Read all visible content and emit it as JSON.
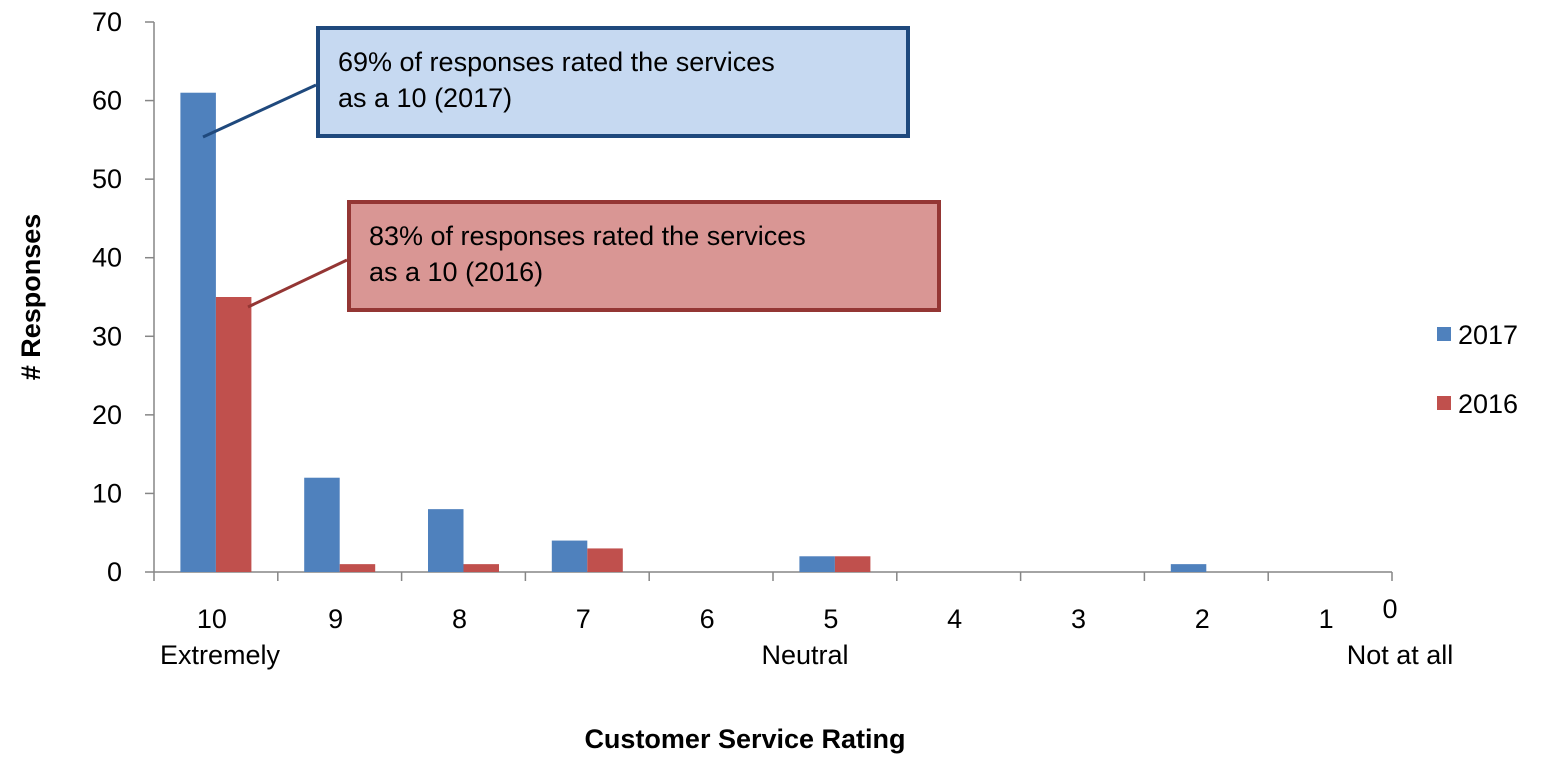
{
  "chart_data": {
    "type": "bar",
    "categories": [
      "10",
      "9",
      "8",
      "7",
      "6",
      "5",
      "4",
      "3",
      "2",
      "1"
    ],
    "series": [
      {
        "name": "2017",
        "color": "#4f81bd",
        "values": [
          61,
          12,
          8,
          4,
          0,
          2,
          0,
          0,
          1,
          0
        ]
      },
      {
        "name": "2016",
        "color": "#c0504d",
        "values": [
          35,
          1,
          1,
          3,
          0,
          2,
          0,
          0,
          0,
          0
        ]
      }
    ],
    "x_end_label": "0",
    "x_sublabels": [
      "Extremely",
      "Neutral",
      "Not at all"
    ],
    "xlabel": "Customer Service Rating",
    "ylabel": "# Responses",
    "ylim": [
      0,
      70
    ],
    "yticks": [
      0,
      10,
      20,
      30,
      40,
      50,
      60,
      70
    ],
    "legend": "right",
    "annotations": [
      {
        "text": "69% of responses rated the services as a 10 (2017)",
        "fill": "#c6d9f1",
        "border": "#1f497d"
      },
      {
        "text": "83% of responses rated the services as a 10 (2016)",
        "fill": "#d99694",
        "border": "#943634"
      }
    ]
  }
}
